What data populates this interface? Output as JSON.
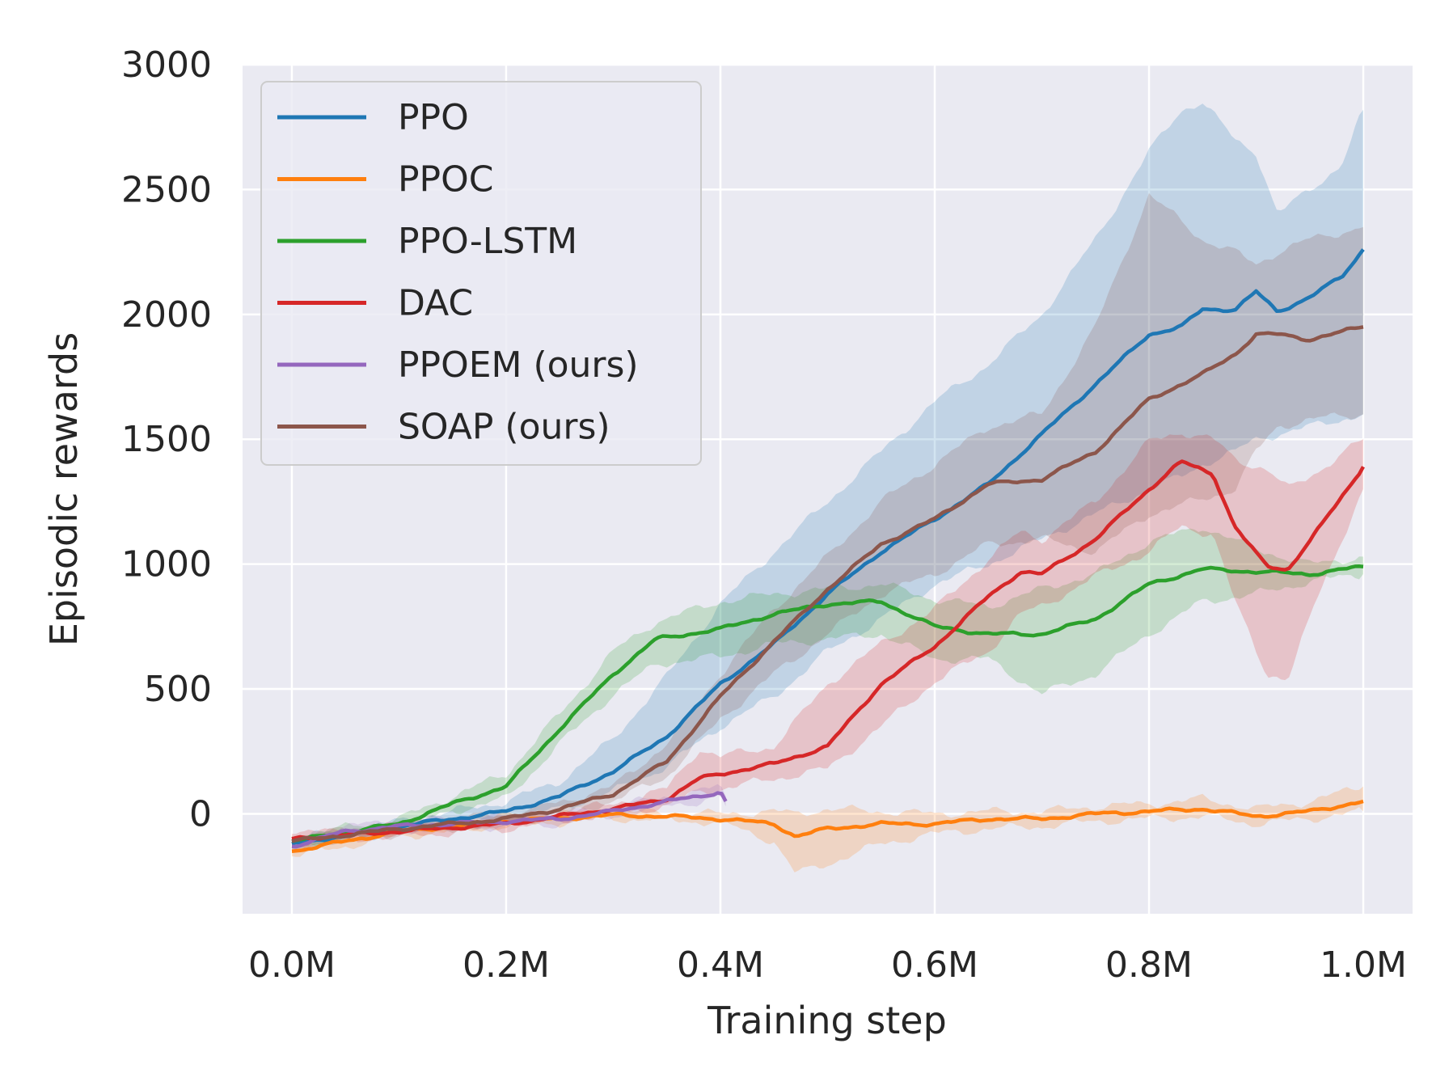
{
  "chart_data": {
    "type": "line",
    "title": "",
    "xlabel": "Training step",
    "ylabel": "Episodic rewards",
    "xlim": [
      -0.046,
      1.046
    ],
    "ylim": [
      -400,
      3000
    ],
    "grid": true,
    "legend_position": "top-left",
    "x_ticks": [
      {
        "value": 0.0,
        "label": "0.0M"
      },
      {
        "value": 0.2,
        "label": "0.2M"
      },
      {
        "value": 0.4,
        "label": "0.4M"
      },
      {
        "value": 0.6,
        "label": "0.6M"
      },
      {
        "value": 0.8,
        "label": "0.8M"
      },
      {
        "value": 1.0,
        "label": "1.0M"
      }
    ],
    "y_ticks": [
      {
        "value": 0,
        "label": "0"
      },
      {
        "value": 500,
        "label": "500"
      },
      {
        "value": 1000,
        "label": "1000"
      },
      {
        "value": 1500,
        "label": "1500"
      },
      {
        "value": 2000,
        "label": "2000"
      },
      {
        "value": 2500,
        "label": "2500"
      },
      {
        "value": 3000,
        "label": "3000"
      }
    ],
    "series": [
      {
        "name": "PPO",
        "color": "#1f77b4",
        "x": [
          0.0,
          0.1,
          0.2,
          0.25,
          0.3,
          0.35,
          0.4,
          0.45,
          0.5,
          0.55,
          0.6,
          0.65,
          0.7,
          0.75,
          0.8,
          0.83,
          0.85,
          0.88,
          0.9,
          0.92,
          0.95,
          0.98,
          1.0
        ],
        "y": [
          -120,
          -50,
          10,
          70,
          170,
          310,
          520,
          680,
          880,
          1050,
          1180,
          1320,
          1520,
          1720,
          1920,
          1950,
          2020,
          2020,
          2090,
          2010,
          2070,
          2150,
          2260
        ],
        "lower": [
          -140,
          -70,
          -20,
          20,
          90,
          190,
          350,
          470,
          650,
          780,
          920,
          1000,
          1100,
          1200,
          1300,
          1350,
          1400,
          1450,
          1500,
          1520,
          1550,
          1580,
          1600
        ],
        "upper": [
          -100,
          -30,
          50,
          130,
          300,
          550,
          840,
          1050,
          1250,
          1450,
          1650,
          1800,
          2000,
          2300,
          2650,
          2820,
          2850,
          2700,
          2650,
          2400,
          2500,
          2600,
          2820
        ]
      },
      {
        "name": "PPOC",
        "color": "#ff7f0e",
        "x": [
          0.0,
          0.1,
          0.2,
          0.3,
          0.35,
          0.4,
          0.45,
          0.47,
          0.5,
          0.55,
          0.6,
          0.65,
          0.7,
          0.75,
          0.8,
          0.85,
          0.9,
          0.95,
          1.0
        ],
        "y": [
          -150,
          -70,
          -30,
          -5,
          -10,
          -20,
          -40,
          -90,
          -60,
          -40,
          -40,
          -20,
          -20,
          0,
          10,
          20,
          -10,
          10,
          50
        ],
        "lower": [
          -170,
          -90,
          -50,
          -20,
          -25,
          -35,
          -110,
          -240,
          -200,
          -120,
          -80,
          -60,
          -50,
          -30,
          -20,
          -10,
          -40,
          -20,
          10
        ],
        "upper": [
          -130,
          -50,
          -10,
          10,
          5,
          0,
          10,
          0,
          20,
          10,
          0,
          10,
          10,
          30,
          40,
          60,
          20,
          50,
          110
        ]
      },
      {
        "name": "PPO-LSTM",
        "color": "#2ca02c",
        "x": [
          0.0,
          0.1,
          0.15,
          0.2,
          0.25,
          0.3,
          0.34,
          0.4,
          0.45,
          0.5,
          0.55,
          0.6,
          0.65,
          0.7,
          0.75,
          0.8,
          0.85,
          0.9,
          0.95,
          1.0
        ],
        "y": [
          -110,
          -40,
          40,
          110,
          340,
          560,
          700,
          740,
          800,
          840,
          850,
          750,
          720,
          720,
          780,
          920,
          980,
          970,
          960,
          990
        ],
        "lower": [
          -130,
          -60,
          10,
          60,
          280,
          480,
          600,
          630,
          680,
          700,
          720,
          620,
          620,
          480,
          560,
          720,
          850,
          880,
          930,
          960
        ],
        "upper": [
          -90,
          -20,
          70,
          160,
          400,
          650,
          770,
          850,
          880,
          900,
          920,
          860,
          830,
          900,
          960,
          1090,
          1150,
          1060,
          1000,
          1030
        ]
      },
      {
        "name": "DAC",
        "color": "#d62728",
        "x": [
          0.0,
          0.1,
          0.2,
          0.3,
          0.35,
          0.38,
          0.4,
          0.45,
          0.5,
          0.55,
          0.6,
          0.65,
          0.68,
          0.7,
          0.75,
          0.8,
          0.83,
          0.86,
          0.88,
          0.91,
          0.93,
          0.96,
          1.0
        ],
        "y": [
          -100,
          -70,
          -40,
          20,
          60,
          140,
          160,
          200,
          270,
          520,
          670,
          870,
          970,
          960,
          1100,
          1300,
          1410,
          1360,
          1150,
          990,
          980,
          1150,
          1390
        ],
        "lower": [
          -120,
          -90,
          -60,
          0,
          30,
          90,
          100,
          140,
          180,
          350,
          530,
          650,
          800,
          830,
          950,
          1050,
          1150,
          1120,
          850,
          560,
          540,
          900,
          1300
        ],
        "upper": [
          -80,
          -50,
          -20,
          40,
          100,
          260,
          230,
          270,
          520,
          680,
          820,
          1020,
          1130,
          1100,
          1250,
          1490,
          1530,
          1500,
          1420,
          1380,
          1300,
          1380,
          1500
        ]
      },
      {
        "name": "PPOEM (ours)",
        "color": "#9467bd",
        "x": [
          0.0,
          0.05,
          0.1,
          0.15,
          0.2,
          0.25,
          0.3,
          0.35,
          0.38,
          0.4,
          0.405
        ],
        "y": [
          -130,
          -70,
          -50,
          -40,
          -30,
          -20,
          10,
          50,
          70,
          90,
          50
        ],
        "lower": [
          -150,
          -90,
          -70,
          -60,
          -50,
          -40,
          -10,
          30,
          50,
          70,
          30
        ],
        "upper": [
          -110,
          -50,
          -30,
          -20,
          -10,
          0,
          30,
          70,
          90,
          110,
          70
        ]
      },
      {
        "name": "SOAP (ours)",
        "color": "#8c564b",
        "x": [
          0.0,
          0.1,
          0.2,
          0.25,
          0.3,
          0.35,
          0.4,
          0.45,
          0.5,
          0.55,
          0.6,
          0.65,
          0.7,
          0.75,
          0.8,
          0.85,
          0.88,
          0.9,
          0.92,
          0.95,
          1.0
        ],
        "y": [
          -110,
          -60,
          -20,
          20,
          80,
          210,
          470,
          690,
          900,
          1080,
          1180,
          1320,
          1340,
          1450,
          1660,
          1760,
          1840,
          1920,
          1920,
          1900,
          1950
        ],
        "lower": [
          -130,
          -80,
          -40,
          -5,
          50,
          150,
          380,
          560,
          720,
          880,
          960,
          1080,
          1100,
          1050,
          1200,
          1260,
          1300,
          1450,
          1550,
          1580,
          1600
        ],
        "upper": [
          -90,
          -40,
          0,
          45,
          110,
          280,
          560,
          820,
          1030,
          1250,
          1400,
          1550,
          1600,
          1950,
          2480,
          2300,
          2250,
          2200,
          2250,
          2300,
          2350
        ]
      }
    ]
  }
}
